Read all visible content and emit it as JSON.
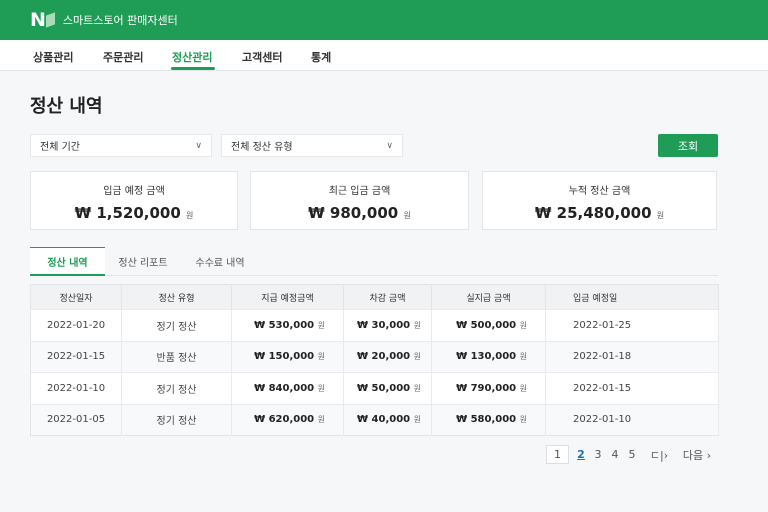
{
  "header": {
    "logo": "N",
    "app_title": "스마트스토어 판매자센터",
    "brand_color": "#1f9d57"
  },
  "nav": {
    "items": [
      "상품관리",
      "주문관리",
      "정산관리",
      "고객센터",
      "통계"
    ],
    "active": "정산관리"
  },
  "page_title": "정산 내역",
  "filters": {
    "period": "전체 기간",
    "type": "전체 정산 유형",
    "search_label": "조회"
  },
  "summary": [
    {
      "label": "입금 예정 금액",
      "value": "₩ 1,520,000",
      "unit": "원"
    },
    {
      "label": "최근 입금 금액",
      "value": "₩ 980,000",
      "unit": "원"
    },
    {
      "label": "누적 정산 금액",
      "value": "₩ 25,480,000",
      "unit": "원"
    }
  ],
  "tabs": [
    "정산 내역",
    "정산 리포트",
    "수수료 내역"
  ],
  "table": {
    "headers": [
      "정산일자",
      "정산 유형",
      "지급 예정금액",
      "차감 금액",
      "실지급 금액",
      "입금 예정일"
    ],
    "rows": [
      [
        "2022-01-20",
        "정기 정산",
        "₩ 530,000",
        "₩ 30,000",
        "₩ 500,000",
        "2022-01-25"
      ],
      [
        "2022-01-15",
        "반품 정산",
        "₩ 150,000",
        "₩ 20,000",
        "₩ 130,000",
        "2022-01-18"
      ],
      [
        "2022-01-10",
        "정기 정산",
        "₩ 840,000",
        "₩ 50,000",
        "₩ 790,000",
        "2022-01-15"
      ],
      [
        "2022-01-05",
        "정기 정산",
        "₩ 620,000",
        "₩ 40,000",
        "₩ 580,000",
        "2022-01-10"
      ]
    ],
    "unit": "원"
  },
  "pagination": {
    "pages": [
      "1",
      "2",
      "3",
      "4",
      "5"
    ],
    "current": "2",
    "more": "ㄷ|›",
    "next": "다음 ›"
  }
}
